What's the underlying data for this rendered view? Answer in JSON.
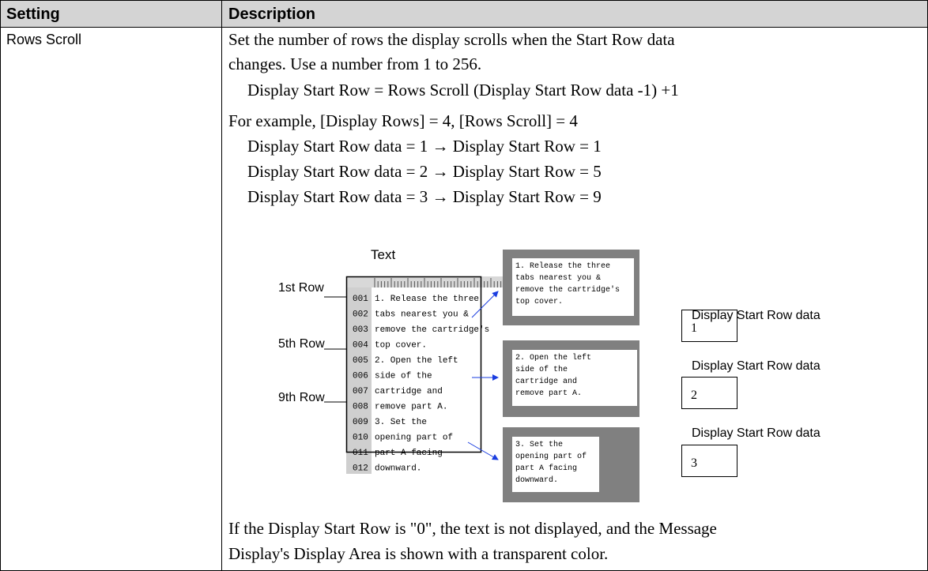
{
  "table": {
    "headers": [
      "Setting",
      "Description"
    ],
    "rows": [
      {
        "setting": "Rows Scroll",
        "intro": [
          "Set the number of rows the display scrolls when the Start Row data",
          "changes. Use a number from 1 to 256."
        ],
        "formula": "Display Start Row = Rows Scroll (Display Start Row data -1) +1",
        "example_intro": "For example, [Display Rows] = 4, [Rows Scroll] = 4",
        "examples": [
          "Display Start Row data = 1 → Display Start Row = 1",
          "Display Start Row data = 2 → Display Start Row = 5",
          "Display Start Row data = 3 → Display Start Row = 9"
        ],
        "diagram": {
          "text_label": "Text",
          "row_labels": [
            "1st Row",
            "5th Row",
            "9th Row"
          ],
          "line_numbers": [
            "001",
            "002",
            "003",
            "004",
            "005",
            "006",
            "007",
            "008",
            "009",
            "010",
            "011",
            "012"
          ],
          "lines": [
            "1. Release the three",
            "tabs nearest you &",
            "remove the cartridge's",
            "top cover.",
            "2. Open the left",
            "side of the",
            "cartridge and",
            "remove part A.",
            "3. Set the",
            "opening part of",
            "part A facing",
            "downward."
          ],
          "displays": [
            [
              "1. Release the three",
              "tabs nearest you &",
              "remove the cartridge's",
              "top cover."
            ],
            [
              "2. Open the left",
              "side of the",
              "cartridge and",
              "remove part A."
            ],
            [
              "3. Set the",
              "opening part of",
              "part A facing",
              "downward."
            ]
          ],
          "data_label": [
            "Display Start Row data",
            "Display Start Row data",
            "Display Start Row data"
          ],
          "data_values": [
            "1",
            "2",
            "3"
          ]
        },
        "footer": [
          "If the Display Start Row is \"0\", the text is not displayed, and the Message",
          "Display's Display Area is shown with a transparent color."
        ]
      }
    ]
  }
}
